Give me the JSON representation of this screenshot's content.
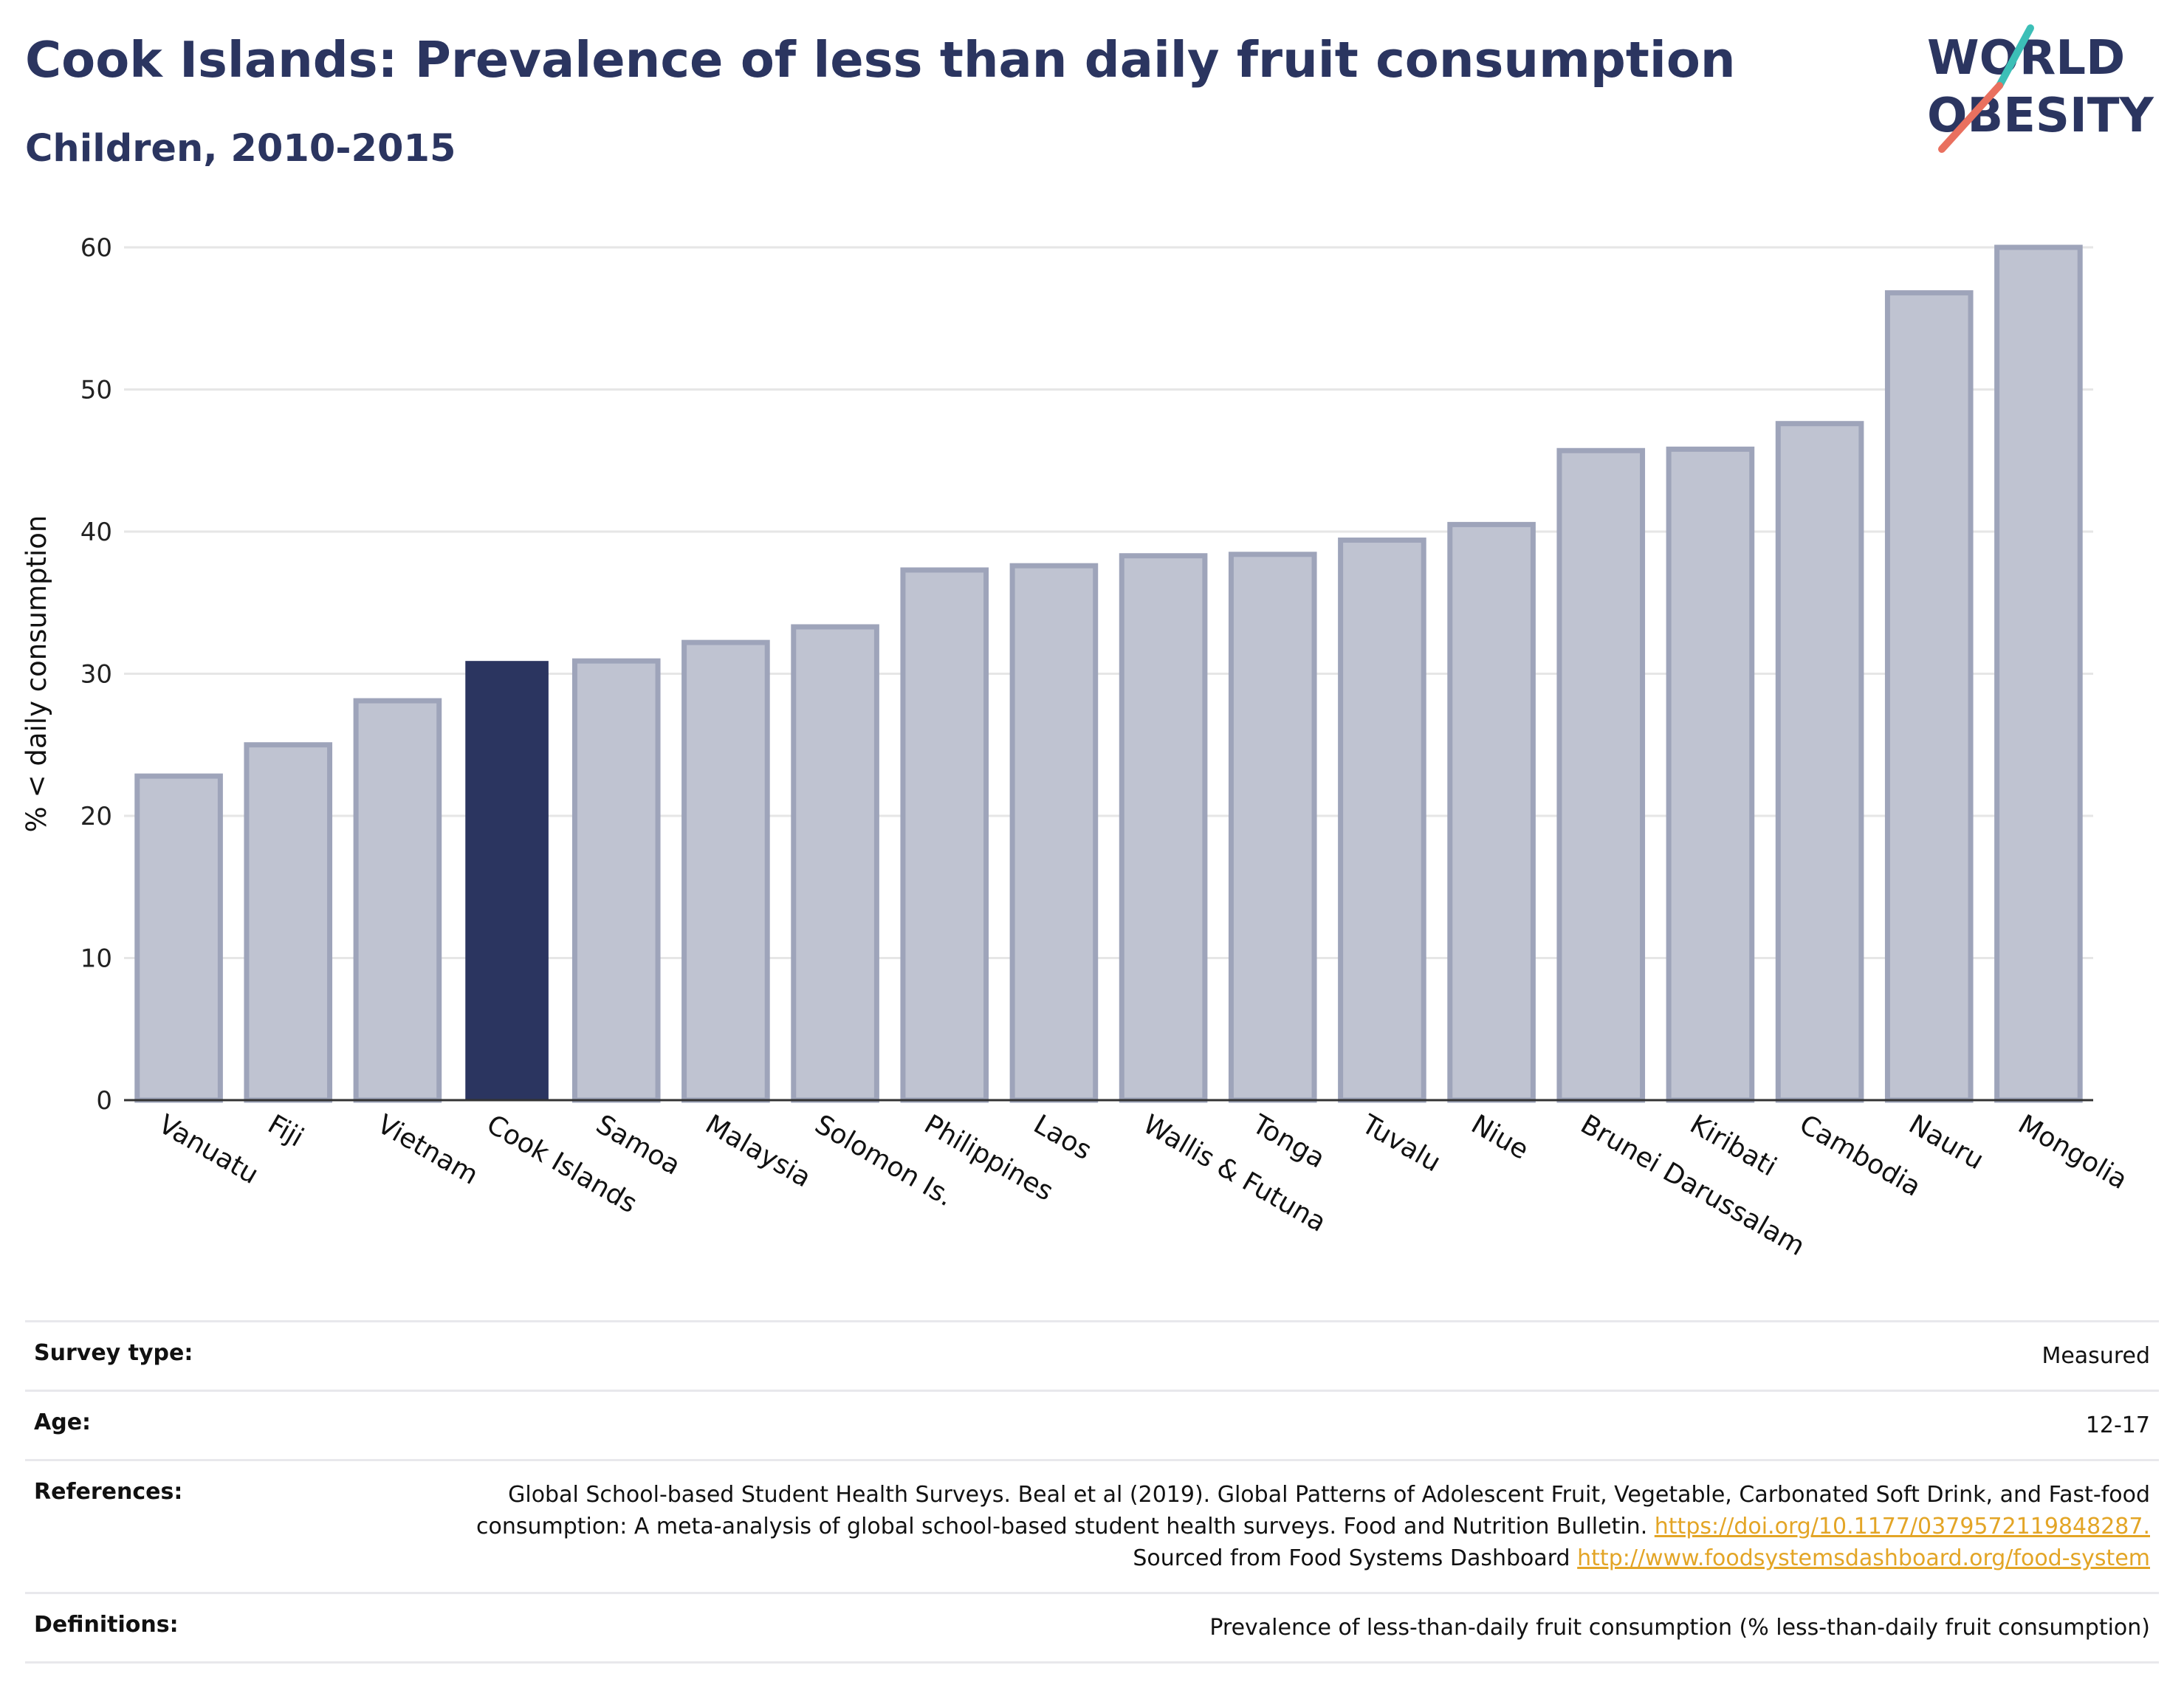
{
  "header": {
    "title": "Cook Islands: Prevalence of less than daily fruit consumption",
    "subtitle": "Children, 2010-2015"
  },
  "logo": {
    "line1": "WORLD",
    "line2": "OBESITY"
  },
  "colors": {
    "highlight": "#2b3560",
    "bar_fill": "#bfc3d1",
    "bar_stroke": "#9ea4ba",
    "grid": "#e6e6e6",
    "logo_teal": "#3cbfb7",
    "logo_coral": "#e9705f"
  },
  "chart_data": {
    "type": "bar",
    "categories": [
      "Vanuatu",
      "Fiji",
      "Vietnam",
      "Cook Islands",
      "Samoa",
      "Malaysia",
      "Solomon Is.",
      "Philippines",
      "Laos",
      "Wallis & Futuna",
      "Tonga",
      "Tuvalu",
      "Niue",
      "Brunei Darussalam",
      "Kiribati",
      "Cambodia",
      "Nauru",
      "Mongolia"
    ],
    "values": [
      22.8,
      25.0,
      28.1,
      30.9,
      30.9,
      32.2,
      33.3,
      37.3,
      37.6,
      38.3,
      38.4,
      39.4,
      40.5,
      45.7,
      45.8,
      47.6,
      56.8,
      60.0
    ],
    "highlight_category": "Cook Islands",
    "title": "Cook Islands: Prevalence of less than daily fruit consumption",
    "subtitle": "Children, 2010-2015",
    "xlabel": "",
    "ylabel": "% < daily consumption",
    "ylim": [
      0,
      60
    ],
    "yticks": [
      0,
      10,
      20,
      30,
      40,
      50,
      60
    ],
    "grid": true,
    "legend": "none"
  },
  "meta": {
    "survey_type": {
      "label": "Survey type:",
      "value": "Measured"
    },
    "age": {
      "label": "Age:",
      "value": "12-17"
    },
    "references": {
      "label": "References:",
      "text1": "Global School-based Student Health Surveys. Beal et al (2019). Global Patterns of Adolescent Fruit, Vegetable, Carbonated Soft Drink, and Fast-food consumption: A meta-analysis of global school-based student health surveys. Food and Nutrition Bulletin.",
      "link1": "https://doi.org/10.1177/0379572119848287.",
      "text2": "Sourced from Food Systems Dashboard",
      "link2": "http://www.foodsystemsdashboard.org/food-system"
    },
    "definitions": {
      "label": "Definitions:",
      "value": "Prevalence of less-than-daily fruit consumption (% less-than-daily fruit consumption)"
    }
  }
}
